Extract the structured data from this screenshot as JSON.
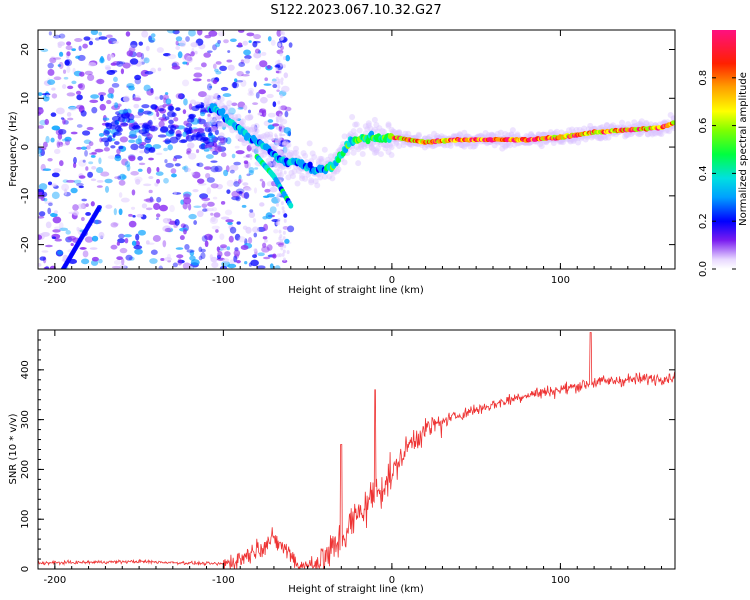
{
  "title": "S122.2023.067.10.32.G27",
  "chart_data": [
    {
      "type": "heatmap",
      "name": "spectrogram",
      "xlabel": "Height of straight line (km)",
      "ylabel": "Frequency (Hz)",
      "xlim": [
        -210,
        168
      ],
      "ylim": [
        -25,
        24
      ],
      "xticks": [
        -200,
        -100,
        0,
        100
      ],
      "yticks": [
        -20,
        -10,
        0,
        10,
        20
      ],
      "colorbar": {
        "label": "Normalized spectral amplitude",
        "range": [
          0,
          1
        ],
        "ticks": [
          "0.0",
          "0.2",
          "0.4",
          "0.6",
          "0.8"
        ],
        "ticks_values": [
          0,
          0.2,
          0.4,
          0.6,
          0.8
        ]
      },
      "ridge": {
        "x": [
          -105,
          -95,
          -85,
          -75,
          -65,
          -55,
          -45,
          -35,
          -25,
          -15,
          0,
          20,
          40,
          60,
          80,
          100,
          120,
          140,
          160,
          168
        ],
        "y": [
          8,
          5,
          2,
          0,
          -3,
          -3,
          -5,
          -4,
          1,
          2,
          2,
          1,
          1.5,
          1.5,
          1.5,
          2,
          3,
          3.5,
          4,
          5
        ]
      },
      "secondary_branch": {
        "x": [
          -80,
          -75,
          -70,
          -65,
          -60
        ],
        "y": [
          -2,
          -4,
          -6,
          -9,
          -12
        ]
      }
    },
    {
      "type": "line",
      "name": "snr",
      "xlabel": "Height of straight line (km)",
      "ylabel": "SNR (10 * v/v)",
      "xlim": [
        -210,
        168
      ],
      "ylim": [
        0,
        480
      ],
      "xticks": [
        -200,
        -100,
        0,
        100
      ],
      "yticks": [
        0,
        100,
        200,
        300,
        400
      ],
      "color": "#ee3333",
      "trend": {
        "x": [
          -210,
          -150,
          -120,
          -100,
          -90,
          -80,
          -70,
          -60,
          -55,
          -50,
          -40,
          -30,
          -20,
          -10,
          0,
          10,
          20,
          40,
          60,
          80,
          100,
          120,
          140,
          168
        ],
        "y": [
          12,
          15,
          12,
          10,
          20,
          40,
          60,
          30,
          5,
          3,
          20,
          60,
          110,
          150,
          190,
          250,
          280,
          310,
          330,
          350,
          360,
          375,
          380,
          385
        ]
      },
      "spikes": [
        {
          "x": 118,
          "y": 475
        },
        {
          "x": -10,
          "y": 360
        },
        {
          "x": -30,
          "y": 250
        }
      ]
    }
  ]
}
